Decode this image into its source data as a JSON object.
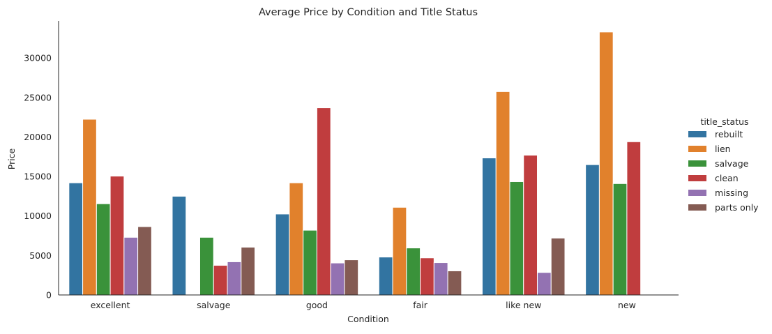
{
  "chart_data": {
    "type": "bar",
    "title": "Average Price by Condition and Title Status",
    "xlabel": "Condition",
    "ylabel": "Price",
    "ylim": [
      0,
      34700
    ],
    "yticks": [
      0,
      5000,
      10000,
      15000,
      20000,
      25000,
      30000
    ],
    "grid": false,
    "legend": {
      "title": "title_status",
      "position": "right"
    },
    "categories": [
      "excellent",
      "salvage",
      "good",
      "fair",
      "like new",
      "new"
    ],
    "series": [
      {
        "name": "rebuilt",
        "color": "#3274a1",
        "values": [
          14200,
          12500,
          10250,
          4800,
          17350,
          16500
        ]
      },
      {
        "name": "lien",
        "color": "#e1812c",
        "values": [
          22250,
          null,
          14200,
          11100,
          25750,
          33300
        ]
      },
      {
        "name": "salvage",
        "color": "#3a923a",
        "values": [
          11550,
          7300,
          8200,
          5950,
          14350,
          14100
        ]
      },
      {
        "name": "clean",
        "color": "#c03d3e",
        "values": [
          15050,
          3750,
          23700,
          4700,
          17700,
          19400
        ]
      },
      {
        "name": "missing",
        "color": "#9372b2",
        "values": [
          7300,
          4200,
          4050,
          4100,
          2850,
          null
        ]
      },
      {
        "name": "parts only",
        "color": "#845b53",
        "values": [
          8650,
          6050,
          4450,
          3050,
          7200,
          null
        ]
      }
    ]
  }
}
